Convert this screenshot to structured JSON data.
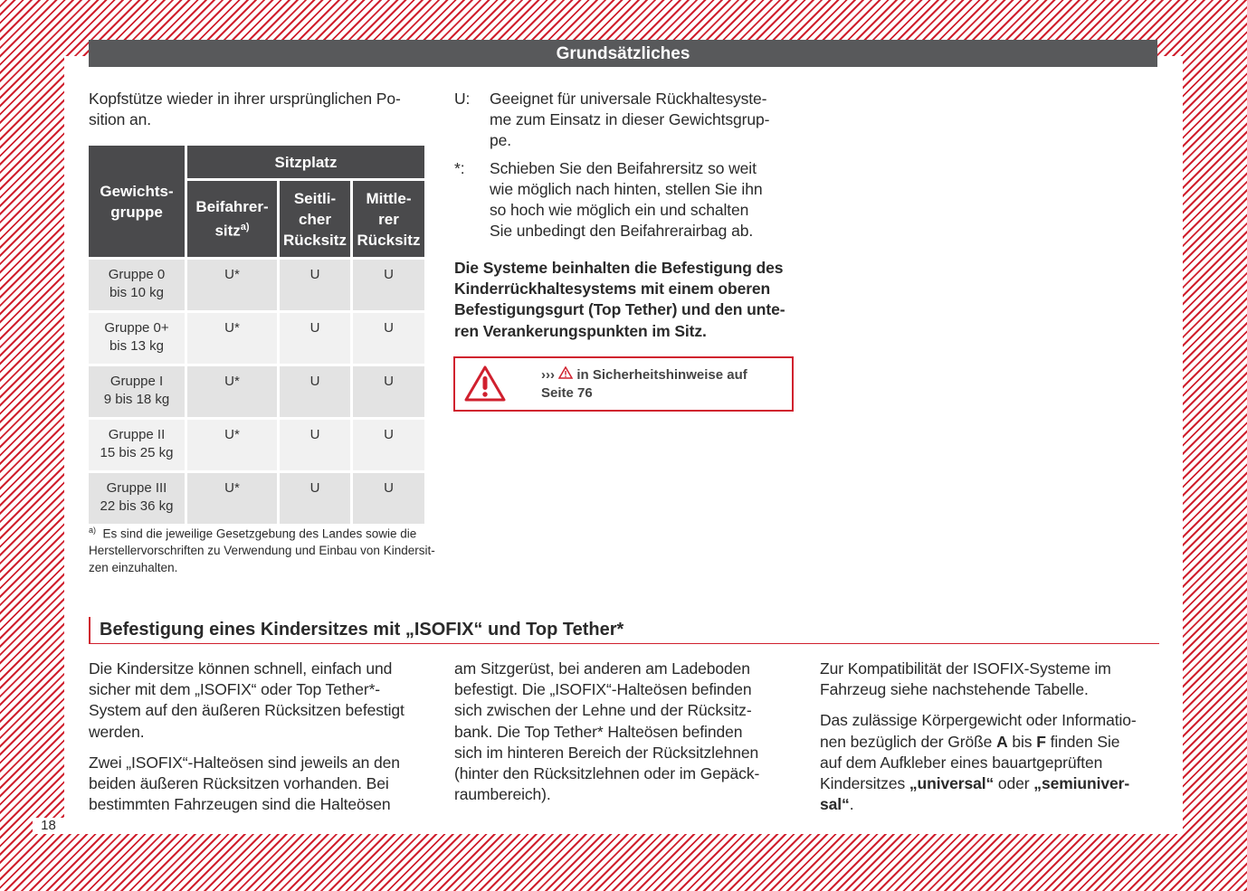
{
  "page_number": "18",
  "header": "Grundsätzliches",
  "intro_lines": [
    "Kopfstütze wieder in ihrer ursprünglichen Po-",
    "sition an."
  ],
  "table": {
    "col_group": [
      "Gewichts-",
      "gruppe"
    ],
    "sitzplatz": "Sitzplatz",
    "cols": [
      [
        "Beifahrer-",
        "sitz"
      ],
      [
        "Seitli-",
        "cher",
        "Rücksitz"
      ],
      [
        "Mittle-",
        "rer",
        "Rücksitz"
      ]
    ],
    "col1_sup": "a)",
    "rows": [
      {
        "group": [
          "Gruppe 0",
          "bis 10 kg"
        ],
        "vals": [
          "U*",
          "U",
          "U"
        ]
      },
      {
        "group": [
          "Gruppe 0+",
          "bis 13 kg"
        ],
        "vals": [
          "U*",
          "U",
          "U"
        ]
      },
      {
        "group": [
          "Gruppe I",
          "9 bis 18 kg"
        ],
        "vals": [
          "U*",
          "U",
          "U"
        ]
      },
      {
        "group": [
          "Gruppe II",
          "15 bis 25 kg"
        ],
        "vals": [
          "U*",
          "U",
          "U"
        ]
      },
      {
        "group": [
          "Gruppe III",
          "22 bis 36 kg"
        ],
        "vals": [
          "U*",
          "U",
          "U"
        ]
      }
    ]
  },
  "footnote": {
    "mark": "a)",
    "lines": [
      "Es sind die jeweilige Gesetzgebung des Landes sowie die",
      "Herstellervorschriften zu Verwendung und Einbau von Kindersit-",
      "zen einzuhalten."
    ]
  },
  "legend": [
    {
      "key": "U:",
      "lines": [
        "Geeignet für universale Rückhaltesyste-",
        "me zum Einsatz in dieser Gewichtsgrup-",
        "pe."
      ]
    },
    {
      "key": "*:",
      "lines": [
        "Schieben Sie den Beifahrersitz so weit",
        "wie möglich nach hinten, stellen Sie ihn",
        "so hoch wie möglich ein und schalten",
        "Sie unbedingt den Beifahrerairbag ab."
      ]
    }
  ],
  "bold_para": [
    "Die Systeme beinhalten die Befestigung des",
    "Kinderrückhaltesystems mit einem oberen",
    "Befestigungsgurt (Top Tether) und den unte-",
    "ren Verankerungspunkten im Sitz."
  ],
  "warning": {
    "arrows": "›››",
    "line1": "in Sicherheitshinweise auf",
    "line2": "Seite 76",
    "color": "#d0202e"
  },
  "section_title": "Befestigung eines Kindersitzes mit „ISOFIX“ und Top Tether*",
  "col1": [
    [
      "Die Kindersitze können schnell, einfach und",
      "sicher mit dem „ISOFIX“ oder Top Tether*-",
      "System auf den äußeren Rücksitzen befestigt",
      "werden."
    ],
    [
      "Zwei „ISOFIX“-Halteösen sind jeweils an den",
      "beiden äußeren Rücksitzen vorhanden. Bei",
      "bestimmten Fahrzeugen sind die Halteösen"
    ]
  ],
  "col2": [
    [
      "am Sitzgerüst, bei anderen am Ladeboden",
      "befestigt. Die „ISOFIX“-Halteösen befinden",
      "sich zwischen der Lehne und der Rücksitz-",
      "bank. Die Top Tether* Halteösen befinden",
      "sich im hinteren Bereich der Rücksitzlehnen",
      "(hinter den Rücksitzlehnen oder im Gepäck-",
      "raumbereich)."
    ]
  ],
  "col3": {
    "p1": [
      "Zur Kompatibilität der ISOFIX-Systeme im",
      "Fahrzeug siehe nachstehende Tabelle."
    ],
    "p2_html": [
      "Das zulässige Körpergewicht oder Informatio-",
      "nen bezüglich der Größe <b>A</b> bis <b>F</b> finden Sie",
      "auf dem Aufkleber eines bauartgeprüften",
      "Kindersitzes <b>„universal“</b> oder <b>„semiuniver-</b>",
      "<b>sal“</b>."
    ]
  },
  "colors": {
    "accent": "#d0202e",
    "header_bg": "#58595b"
  }
}
